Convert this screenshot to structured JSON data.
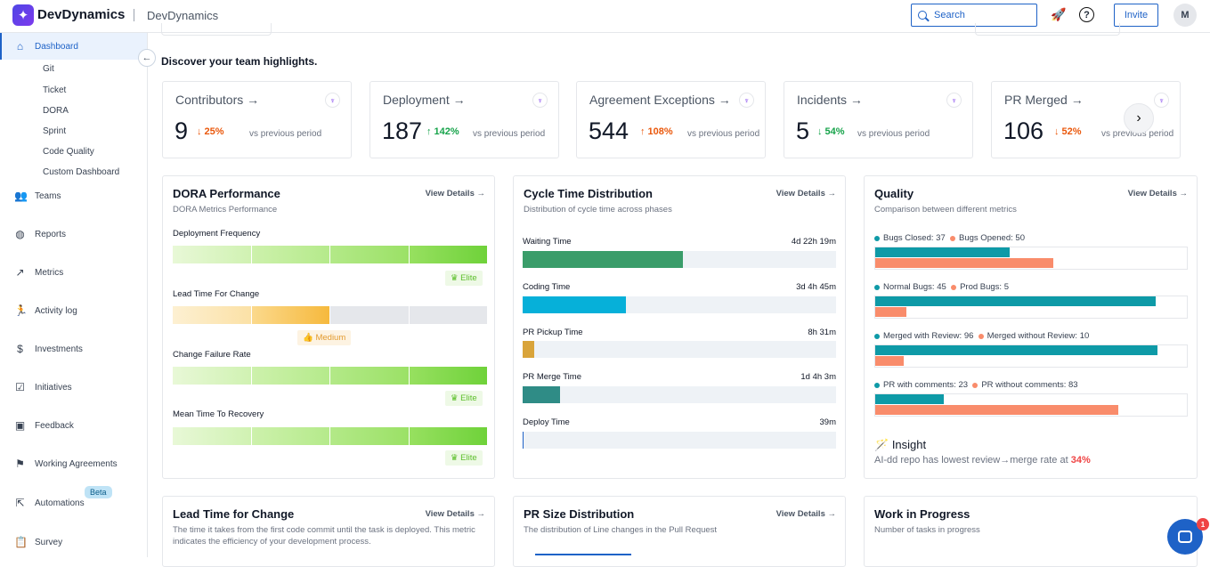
{
  "app": {
    "logo": "DevDynamics",
    "org": "DevDynamics"
  },
  "header": {
    "search_placeholder": "Search",
    "invite_label": "Invite",
    "avatar_initial": "M"
  },
  "sidebar": {
    "dashboard": "Dashboard",
    "sub_items": [
      "Git",
      "Ticket",
      "DORA",
      "Sprint",
      "Code Quality",
      "Custom Dashboard"
    ],
    "items": [
      "Teams",
      "Reports",
      "Metrics",
      "Activity log",
      "Investments",
      "Initiatives",
      "Feedback",
      "Working Agreements",
      "Automations",
      "Survey"
    ],
    "beta": "Beta"
  },
  "main": {
    "highlights_title": "Discover your team highlights.",
    "kpis": [
      {
        "title": "Contributors →",
        "value": "9",
        "delta": "↓ 25%",
        "direction": "down",
        "vs": "vs previous period"
      },
      {
        "title": "Deployment →",
        "value": "187",
        "delta": "↑ 142%",
        "direction": "up",
        "vs": "vs previous period"
      },
      {
        "title": "Agreement Exceptions →",
        "value": "544",
        "delta": "↑ 108%",
        "direction": "down",
        "vs": "vs previous period"
      },
      {
        "title": "Incidents →",
        "value": "5",
        "delta": "↓ 54%",
        "direction": "up",
        "vs": "vs previous period"
      },
      {
        "title": "PR Merged →",
        "value": "106",
        "delta": "↓ 52%",
        "direction": "down",
        "vs": "vs previous period"
      }
    ],
    "view_details": "View Details →",
    "dora": {
      "title": "DORA Performance",
      "subtitle": "DORA Metrics Performance",
      "metrics": [
        {
          "label": "Deployment Frequency",
          "badge": "Elite",
          "level": 4,
          "scheme": "green"
        },
        {
          "label": "Lead Time For Change",
          "badge": "Medium",
          "level": 2,
          "scheme": "orange"
        },
        {
          "label": "Change Failure Rate",
          "badge": "Elite",
          "level": 4,
          "scheme": "green"
        },
        {
          "label": "Mean Time To Recovery",
          "badge": "Elite",
          "level": 4,
          "scheme": "green"
        }
      ]
    },
    "cycle": {
      "title": "Cycle Time Distribution",
      "subtitle": "Distribution of cycle time across phases",
      "phases": [
        {
          "label": "Waiting Time",
          "value": "4d 22h 19m",
          "fraction": 0.51,
          "color": "#3a9d6a"
        },
        {
          "label": "Coding Time",
          "value": "3d 4h 45m",
          "fraction": 0.33,
          "color": "#06b0d9"
        },
        {
          "label": "PR Pickup Time",
          "value": "8h 31m",
          "fraction": 0.037,
          "color": "#d9a43a"
        },
        {
          "label": "PR Merge Time",
          "value": "1d 4h 3m",
          "fraction": 0.12,
          "color": "#2f8c86"
        },
        {
          "label": "Deploy Time",
          "value": "39m",
          "fraction": 0.004,
          "color": "#1e62c7"
        }
      ]
    },
    "quality": {
      "title": "Quality",
      "subtitle": "Comparison between different metrics",
      "color_a": "#0e9aa7",
      "color_b": "#f98c6b",
      "pairs": [
        {
          "a_label": "Bugs Closed:",
          "a_value": 37,
          "b_label": "Bugs Opened:",
          "b_value": 50,
          "a_frac": 0.43,
          "b_frac": 0.57
        },
        {
          "a_label": "Normal Bugs:",
          "a_value": 45,
          "b_label": "Prod Bugs:",
          "b_value": 5,
          "a_frac": 0.9,
          "b_frac": 0.1
        },
        {
          "a_label": "Merged with Review:",
          "a_value": 96,
          "b_label": "Merged without Review:",
          "b_value": 10,
          "a_frac": 0.905,
          "b_frac": 0.09
        },
        {
          "a_label": "PR with comments:",
          "a_value": 23,
          "b_label": "PR without comments:",
          "b_value": 83,
          "a_frac": 0.22,
          "b_frac": 0.78
        }
      ],
      "insight_title": "Insight",
      "insight_text": "AI-dd repo has lowest review→merge rate at",
      "insight_value": "34%"
    },
    "lead_time": {
      "title": "Lead Time for Change",
      "subtitle": "The time it takes from the first code commit until the task is deployed. This metric indicates the efficiency of your development process."
    },
    "pr_size": {
      "title": "PR Size Distribution",
      "subtitle": "The distribution of Line changes in the Pull Request"
    },
    "wip": {
      "title": "Work in Progress",
      "subtitle": "Number of tasks in progress"
    }
  },
  "chat": {
    "unread": "1"
  }
}
